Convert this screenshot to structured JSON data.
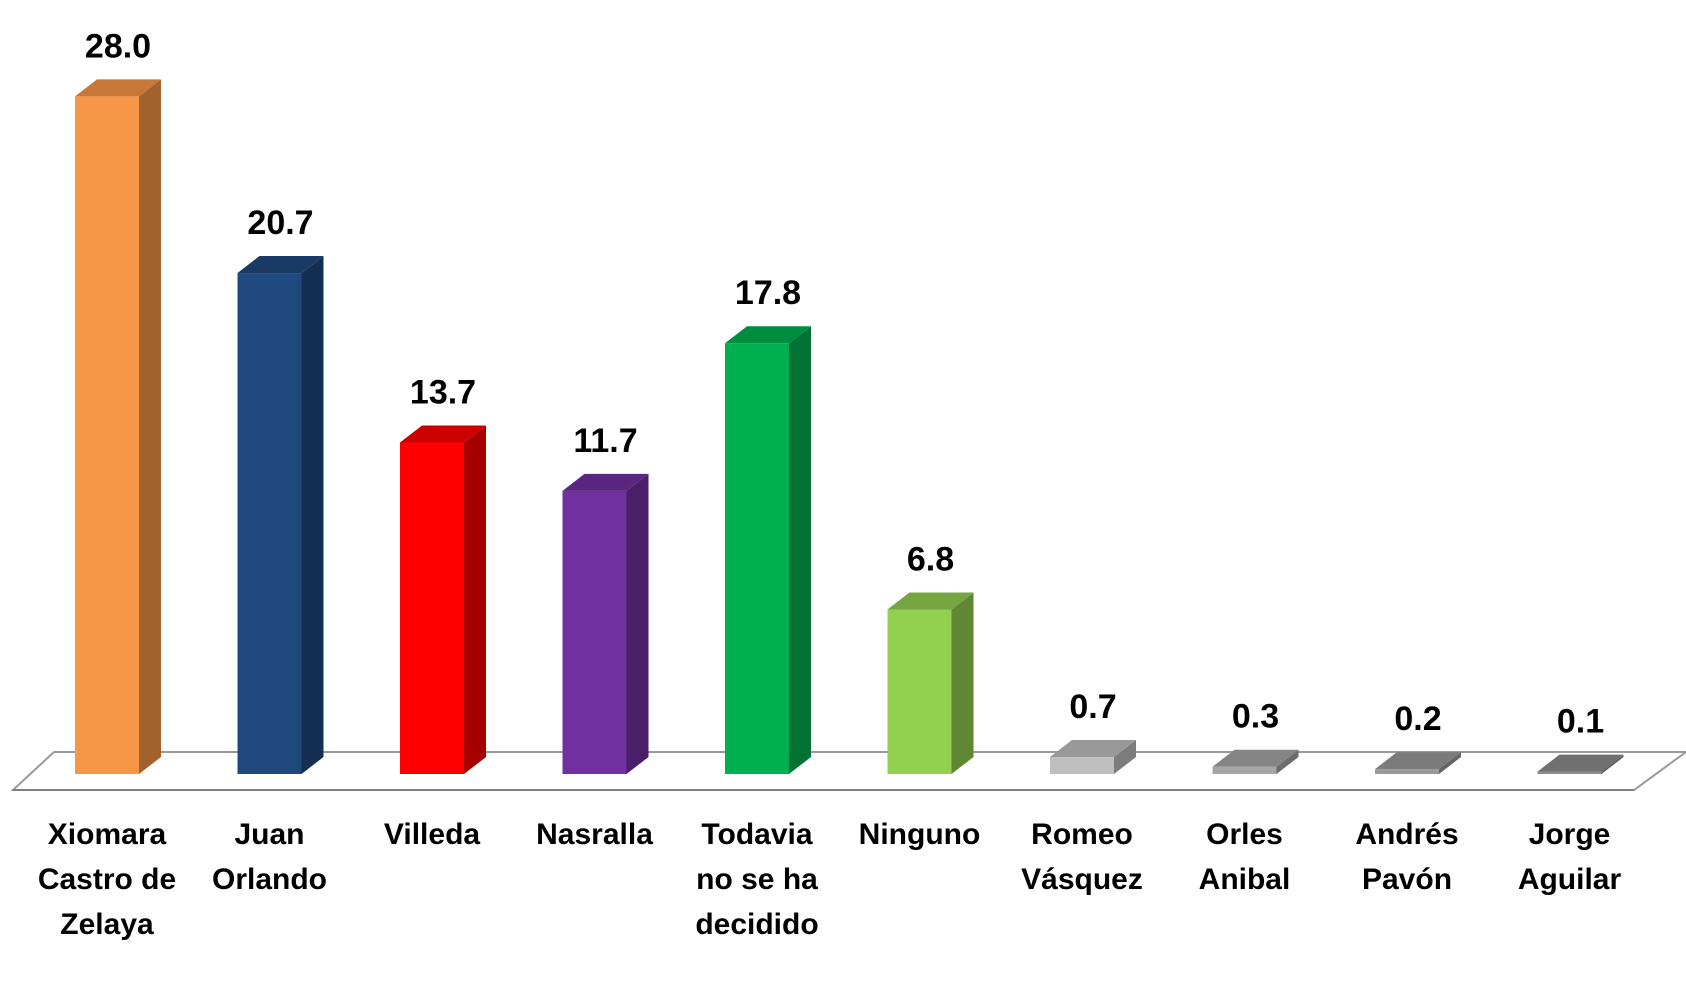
{
  "chart_data": {
    "type": "bar3d",
    "categories": [
      "Xiomara Castro de Zelaya",
      "Juan Orlando",
      "Villeda",
      "Nasralla",
      "Todavia no se ha decidido",
      "Ninguno",
      "Romeo Vásquez",
      "Orles Anibal",
      "Andrés Pavón",
      "Jorge Aguilar"
    ],
    "values": [
      28.0,
      20.7,
      13.7,
      11.7,
      17.8,
      6.8,
      0.7,
      0.3,
      0.2,
      0.1
    ],
    "value_labels": [
      "28.0",
      "20.7",
      "13.7",
      "11.7",
      "17.8",
      "6.8",
      "0.7",
      "0.3",
      "0.2",
      "0.1"
    ],
    "colors": [
      "#f79646",
      "#1f497d",
      "#ff0000",
      "#7030a0",
      "#00b050",
      "#92d050",
      "#bfbfbf",
      "#a6a6a6",
      "#9a9a9a",
      "#8c8c8c"
    ]
  }
}
